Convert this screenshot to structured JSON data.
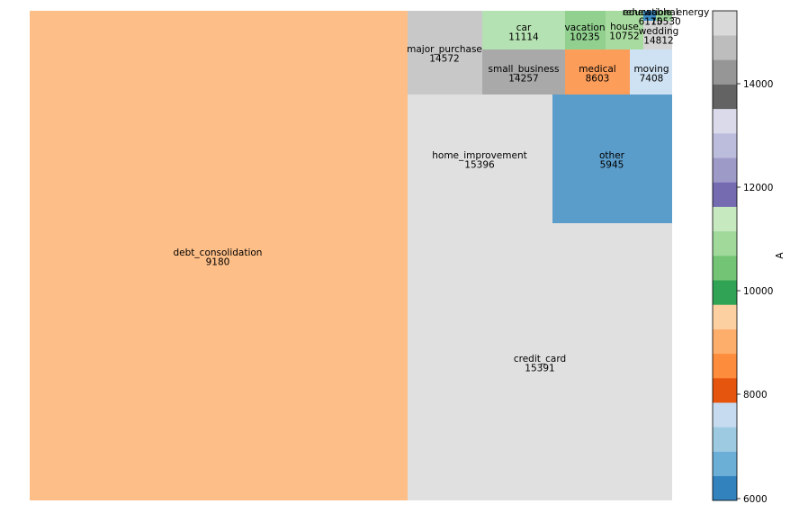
{
  "chart_data": {
    "type": "treemap",
    "title": "",
    "tiles": [
      {
        "label": "debt_consolidation",
        "value": "9180",
        "color": "#fdbe87"
      },
      {
        "label": "credit_card",
        "value": "15391",
        "color": "#e0e0e0"
      },
      {
        "label": "home_improvement",
        "value": "15396",
        "color": "#e0e0e0"
      },
      {
        "label": "other",
        "value": "5945",
        "color": "#5b9dca"
      },
      {
        "label": "major_purchase",
        "value": "14572",
        "color": "#c8c8c8"
      },
      {
        "label": "small_business",
        "value": "14257",
        "color": "#a9a9a9"
      },
      {
        "label": "medical",
        "value": "8603",
        "color": "#fc9d5a"
      },
      {
        "label": "moving",
        "value": "7408",
        "color": "#cfe2f3"
      },
      {
        "label": "car",
        "value": "11114",
        "color": "#b5e2b2"
      },
      {
        "label": "vacation",
        "value": "10235",
        "color": "#91d08f"
      },
      {
        "label": "house",
        "value": "10752",
        "color": "#a8db9f"
      },
      {
        "label": "wedding",
        "value": "14812",
        "color": "#d5d5d5"
      },
      {
        "label": "educational",
        "value": "6175",
        "color": "#3d8cc4"
      },
      {
        "label": "renewable_energy",
        "value": "10530",
        "color": "#9ed59a"
      }
    ],
    "colorbar": {
      "label": "A",
      "ticks": [
        "6000",
        "8000",
        "10000",
        "12000",
        "14000"
      ],
      "colors": [
        "#3182bd",
        "#6baed6",
        "#9ecae1",
        "#c6dbef",
        "#e6550d",
        "#fd8d3c",
        "#fdae6b",
        "#fdd0a2",
        "#31a354",
        "#74c476",
        "#a1d99b",
        "#c7e9c0",
        "#756bb1",
        "#9e9ac8",
        "#bcbddc",
        "#dadaeb",
        "#636363",
        "#969696",
        "#bdbdbd",
        "#d9d9d9"
      ]
    }
  }
}
